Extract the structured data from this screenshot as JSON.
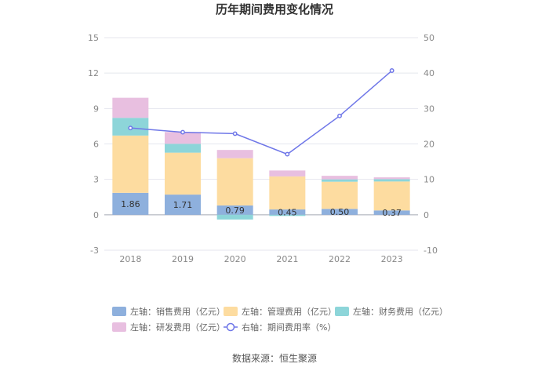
{
  "chart_data": {
    "type": "bar",
    "title": "历年期间费用变化情况",
    "categories": [
      "2018",
      "2019",
      "2020",
      "2021",
      "2022",
      "2023"
    ],
    "left_axis": {
      "min": -3,
      "max": 15,
      "ticks": [
        "15",
        "12",
        "9",
        "6",
        "3",
        "0",
        "-3"
      ]
    },
    "right_axis": {
      "min": -10,
      "max": 50,
      "ticks": [
        "50",
        "40",
        "30",
        "20",
        "10",
        "0",
        "-10"
      ]
    },
    "series": [
      {
        "name": "左轴：销售费用（亿元）",
        "axis": "left",
        "stack": true,
        "color": "#8eb0dd",
        "values": [
          1.86,
          1.71,
          0.79,
          0.45,
          0.5,
          0.37
        ],
        "labels": [
          "1.86",
          "1.71",
          "0.79",
          "0.45",
          "0.50",
          "0.37"
        ]
      },
      {
        "name": "左轴：管理费用（亿元）",
        "axis": "left",
        "stack": true,
        "color": "#fddca0",
        "values": [
          4.85,
          3.55,
          4.0,
          2.8,
          2.3,
          2.45
        ]
      },
      {
        "name": "左轴：财务费用（亿元）",
        "axis": "left",
        "stack": true,
        "color": "#8dd5d9",
        "values": [
          1.5,
          0.75,
          -0.4,
          -0.1,
          0.2,
          0.2
        ]
      },
      {
        "name": "左轴：研发费用（亿元）",
        "axis": "left",
        "stack": true,
        "color": "#e8bfe0",
        "values": [
          1.7,
          1.0,
          0.7,
          0.5,
          0.3,
          0.15
        ]
      },
      {
        "name": "右轴：期间费用率（%）",
        "axis": "right",
        "type": "line",
        "color": "#6f77e8",
        "values": [
          24.5,
          23.3,
          22.9,
          17.1,
          27.9,
          40.7
        ]
      }
    ],
    "grid": true,
    "legend_position": "bottom"
  },
  "source": "数据来源：恒生聚源"
}
